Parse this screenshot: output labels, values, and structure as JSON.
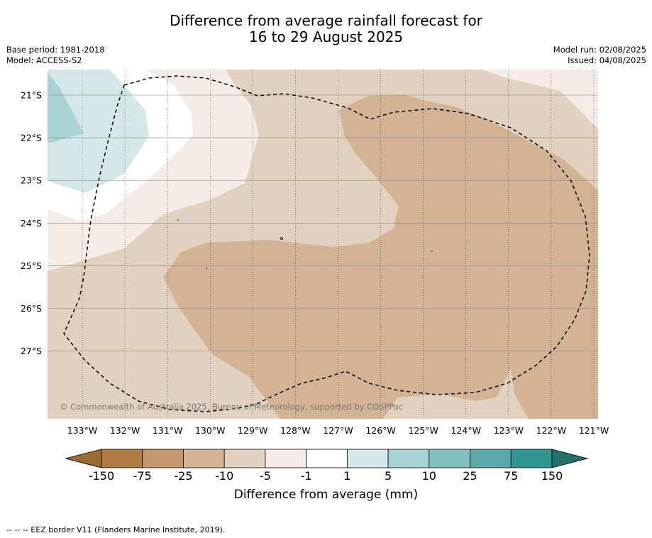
{
  "title": {
    "line1": "Difference from average rainfall forecast for",
    "line2": "16 to 29 August 2025"
  },
  "meta_left": {
    "base_period": "Base period: 1981-2018",
    "model": "Model: ACCESS-S2"
  },
  "meta_right": {
    "model_run": "Model run: 02/08/2025",
    "issued": "Issued: 04/08/2025"
  },
  "map": {
    "lon_labels": [
      "133°W",
      "132°W",
      "131°W",
      "130°W",
      "129°W",
      "128°W",
      "127°W",
      "126°W",
      "125°W",
      "124°W",
      "123°W",
      "122°W",
      "121°W"
    ],
    "lat_labels": [
      "21°S",
      "22°S",
      "23°S",
      "24°S",
      "25°S",
      "26°S",
      "27°S"
    ],
    "copyright": "© Commonwealth of Australia 2025, Bureau of Meteorology, supported by COSPPac",
    "region_colors": {
      "neg25_neg10": "#d2b394",
      "neg10_neg5": "#e3d1c0",
      "neg5_neg1": "#f4ece6",
      "neg1_1": "#ffffff",
      "pos1_5": "#d4e8e7",
      "pos5_10": "#a9d3d3"
    }
  },
  "colorbar": {
    "ticks": [
      "-150",
      "-75",
      "-25",
      "-10",
      "-5",
      "-1",
      "1",
      "5",
      "10",
      "25",
      "75",
      "150"
    ],
    "colors": [
      "#9c6a35",
      "#b07a45",
      "#c4976c",
      "#d2b394",
      "#e3d1c0",
      "#f4ece6",
      "#ffffff",
      "#d4e8e7",
      "#a9d3d3",
      "#82c1c0",
      "#58a9a7",
      "#2f9692",
      "#23706c"
    ],
    "label": "Difference from average (mm)"
  },
  "footer": {
    "legend_text": "--  --  -- EEZ border V11 (Flanders Marine Institute, 2019)."
  }
}
